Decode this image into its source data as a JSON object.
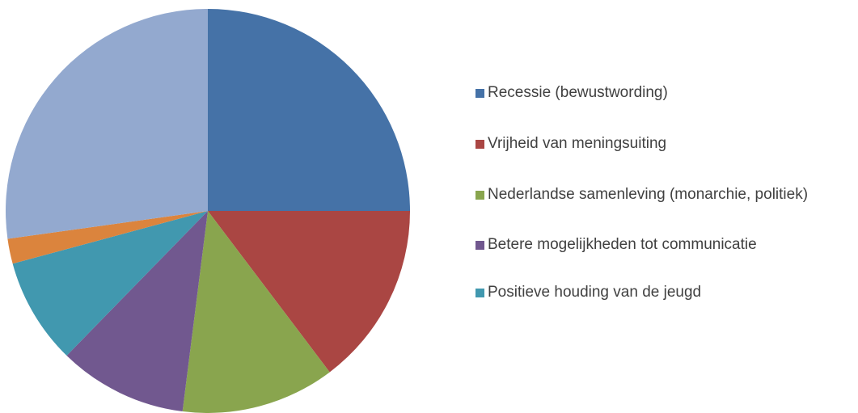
{
  "chart_data": {
    "type": "pie",
    "categories": [
      "Recessie (bewustwording)",
      "Vrijheid van meningsuiting",
      "Nederlandse samenleving (monarchie, politiek)",
      "Betere mogelijkheden tot communicatie",
      "Positieve houding van de jeugd",
      null,
      null
    ],
    "values": [
      25,
      14.7,
      12.3,
      10.3,
      8.5,
      2,
      27.2
    ],
    "colors": [
      "#4572a7",
      "#aa4643",
      "#89a54e",
      "#71588f",
      "#4198af",
      "#db843d",
      "#93a9cf"
    ],
    "legend": "right"
  }
}
